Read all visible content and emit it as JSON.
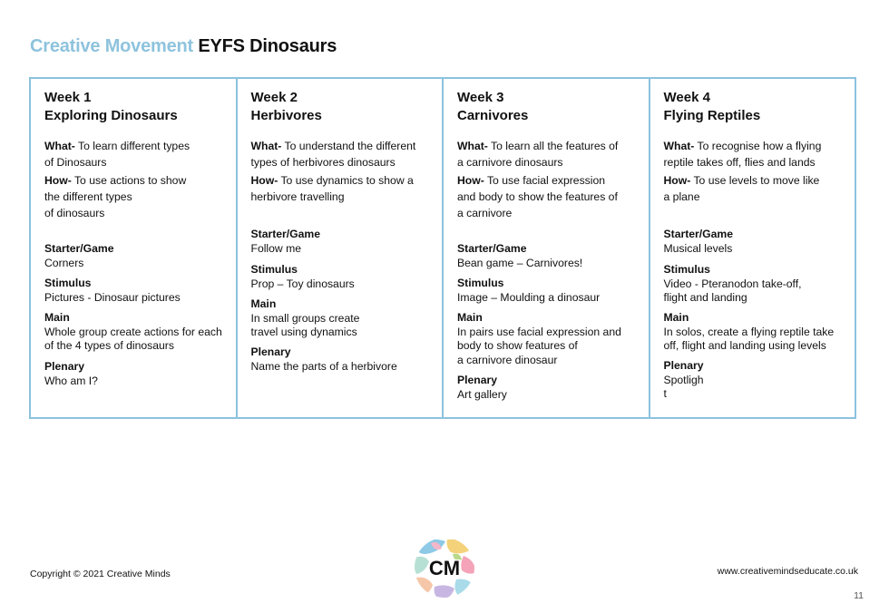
{
  "header": {
    "title_accent": "Creative Movement",
    "title_main": "EYFS Dinosaurs"
  },
  "weeks": [
    {
      "week": "Week 1",
      "name": "Exploring Dinosaurs",
      "what_label": "What-",
      "what_text": " To learn different types\nof Dinosaurs",
      "how_label": "How-",
      "how_text": " To use actions to show\nthe different types\nof dinosaurs",
      "starter_label": "Starter/Game",
      "starter_text": "Corners",
      "stimulus_label": "Stimulus",
      "stimulus_text": "Pictures - Dinosaur pictures",
      "main_label": "Main",
      "main_text": "Whole group create actions for each\nof the 4 types of dinosaurs",
      "plenary_label": "Plenary",
      "plenary_text": "Who am I?"
    },
    {
      "week": "Week 2",
      "name": "Herbivores",
      "what_label": "What-",
      "what_text": " To understand the different\ntypes of herbivores dinosaurs",
      "how_label": "How-",
      "how_text": " To use dynamics to show a\nherbivore travelling",
      "starter_label": "Starter/Game",
      "starter_text": "Follow me",
      "stimulus_label": "Stimulus",
      "stimulus_text": "Prop – Toy dinosaurs",
      "main_label": "Main",
      "main_text": "In small groups create\ntravel using dynamics",
      "plenary_label": "Plenary",
      "plenary_text": "Name the parts of a herbivore"
    },
    {
      "week": "Week 3",
      "name": "Carnivores",
      "what_label": "What-",
      "what_text": " To learn all the features of\na carnivore dinosaurs",
      "how_label": "How-",
      "how_text": " To use facial expression\nand body to show the features of\na carnivore",
      "starter_label": "Starter/Game",
      "starter_text": "Bean game – Carnivores!",
      "stimulus_label": "Stimulus",
      "stimulus_text": "Image – Moulding a dinosaur",
      "main_label": "Main",
      "main_text": "In pairs use facial expression and\nbody to show features of\na carnivore  dinosaur",
      "plenary_label": "Plenary",
      "plenary_text": "Art gallery"
    },
    {
      "week": "Week 4",
      "name": "Flying Reptiles",
      "what_label": "What-",
      "what_text": " To recognise how a flying\nreptile takes off, flies and lands",
      "how_label": "How-",
      "how_text": " To use levels to move like\na plane",
      "starter_label": "Starter/Game",
      "starter_text": "Musical levels",
      "stimulus_label": "Stimulus",
      "stimulus_text": "Video - Pteranodon take-off,\nflight and landing",
      "main_label": "Main",
      "main_text": "In solos, create a flying reptile take\noff, flight and landing using levels",
      "plenary_label": "Plenary",
      "plenary_text": "Spotligh\nt"
    }
  ],
  "footer": {
    "copyright": "Copyright © 2021 Creative Minds",
    "website": "www.creativemindseducate.co.uk",
    "page_number": "11",
    "logo_text": "CM"
  },
  "colors": {
    "accent": "#8ec3dd",
    "border": "#8cc2de"
  }
}
